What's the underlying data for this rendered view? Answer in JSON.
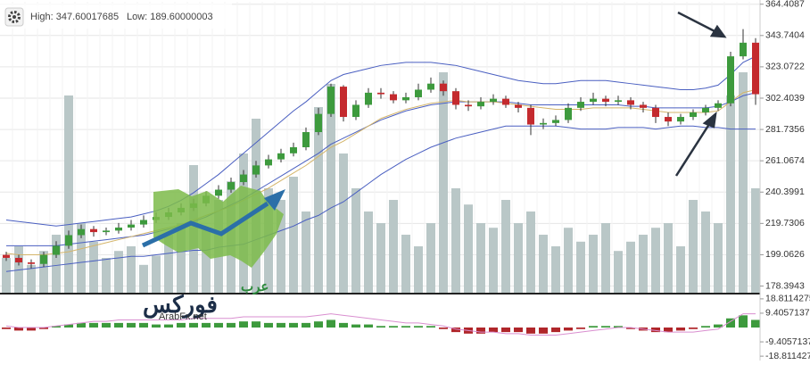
{
  "header": {
    "high": "High: 347.60017685",
    "low": "Low: 189.60000003"
  },
  "watermark": {
    "arabic_top": "عرب",
    "arabic_main": "فوركس",
    "site": "ArabFx.net"
  },
  "chart_data": [
    {
      "type": "candlestick",
      "ylim": [
        174,
        366
      ],
      "yticks": [
        364.4087,
        343.7404,
        323.0722,
        302.4039,
        281.7356,
        261.0674,
        240.3991,
        219.7306,
        199.0626,
        178.3943
      ],
      "grid": true,
      "up_color": "#3d9a3d",
      "down_color": "#c42a2e",
      "open": [
        199,
        197,
        194,
        193,
        199,
        205,
        212,
        216,
        214,
        215,
        217,
        219,
        222,
        224,
        227,
        230,
        233,
        238,
        242,
        247,
        252,
        258,
        262,
        266,
        270,
        280,
        292,
        310,
        290,
        298,
        306,
        305,
        301,
        303,
        308,
        312,
        307,
        298,
        297,
        300,
        302,
        298,
        296,
        285,
        286,
        288,
        296,
        300,
        302,
        300,
        301,
        298,
        296,
        290,
        287,
        290,
        293,
        296,
        299,
        330,
        339
      ],
      "high": [
        201,
        199,
        196,
        201,
        208,
        215,
        219,
        218,
        217,
        220,
        222,
        225,
        227,
        230,
        233,
        236,
        241,
        245,
        250,
        255,
        261,
        265,
        269,
        273,
        283,
        296,
        312,
        311,
        301,
        309,
        309,
        307,
        306,
        312,
        316,
        314,
        309,
        301,
        303,
        305,
        304,
        300,
        298,
        289,
        291,
        299,
        303,
        306,
        304,
        304,
        303,
        300,
        298,
        293,
        292,
        295,
        298,
        301,
        333,
        348,
        342
      ],
      "low": [
        195,
        192,
        190,
        191,
        197,
        203,
        210,
        211,
        212,
        213,
        215,
        217,
        220,
        222,
        225,
        228,
        231,
        236,
        240,
        245,
        250,
        256,
        260,
        264,
        268,
        278,
        290,
        287,
        288,
        296,
        302,
        299,
        299,
        301,
        306,
        304,
        295,
        294,
        295,
        298,
        296,
        293,
        278,
        282,
        284,
        286,
        294,
        298,
        297,
        298,
        295,
        293,
        286,
        284,
        285,
        288,
        291,
        294,
        297,
        328,
        298
      ],
      "close": [
        197,
        194,
        193,
        199,
        205,
        212,
        216,
        214,
        215,
        217,
        219,
        222,
        224,
        227,
        230,
        233,
        238,
        242,
        247,
        252,
        258,
        262,
        266,
        270,
        280,
        292,
        310,
        290,
        298,
        306,
        305,
        301,
        303,
        308,
        312,
        307,
        298,
        297,
        300,
        302,
        298,
        296,
        285,
        286,
        288,
        296,
        300,
        302,
        300,
        301,
        298,
        296,
        290,
        287,
        290,
        293,
        296,
        299,
        330,
        339,
        305
      ],
      "volume_color": "#b9c7c7",
      "volume_lim": [
        0,
        100
      ],
      "volume": [
        15,
        20,
        12,
        18,
        25,
        85,
        30,
        22,
        15,
        18,
        20,
        12,
        16,
        25,
        30,
        55,
        28,
        40,
        48,
        60,
        75,
        45,
        40,
        50,
        35,
        80,
        90,
        60,
        45,
        35,
        30,
        40,
        25,
        20,
        30,
        95,
        45,
        38,
        30,
        28,
        40,
        30,
        35,
        25,
        20,
        28,
        22,
        25,
        30,
        18,
        22,
        25,
        28,
        30,
        20,
        40,
        35,
        30,
        85,
        95,
        45
      ],
      "series": [
        {
          "name": "upper",
          "color": "#4a5fc1",
          "values": [
            222,
            221,
            220,
            219,
            218,
            219,
            220,
            221,
            222,
            223,
            224,
            226,
            228,
            231,
            235,
            240,
            246,
            252,
            259,
            266,
            273,
            280,
            287,
            294,
            300,
            307,
            314,
            318,
            320,
            322,
            324,
            325,
            326,
            326,
            326,
            325,
            324,
            322,
            320,
            318,
            316,
            314,
            313,
            312,
            312,
            313,
            314,
            314,
            314,
            313,
            312,
            311,
            310,
            309,
            308,
            308,
            309,
            311,
            318,
            326,
            330
          ]
        },
        {
          "name": "middle",
          "color": "#4a5fc1",
          "values": [
            205,
            205,
            205,
            205,
            205,
            206,
            207,
            208,
            209,
            210,
            211,
            212,
            214,
            216,
            218,
            221,
            224,
            228,
            232,
            236,
            241,
            246,
            251,
            256,
            261,
            266,
            272,
            276,
            280,
            284,
            288,
            291,
            294,
            296,
            298,
            299,
            300,
            300,
            300,
            300,
            300,
            299,
            298,
            298,
            298,
            298,
            298,
            298,
            298,
            298,
            297,
            297,
            296,
            296,
            296,
            296,
            296,
            297,
            300,
            304,
            306
          ]
        },
        {
          "name": "lower",
          "color": "#4a5fc1",
          "values": [
            188,
            189,
            190,
            191,
            192,
            193,
            194,
            195,
            196,
            197,
            198,
            198,
            199,
            200,
            201,
            202,
            202,
            204,
            205,
            206,
            209,
            212,
            215,
            218,
            222,
            225,
            230,
            234,
            240,
            246,
            252,
            257,
            262,
            266,
            270,
            273,
            276,
            278,
            280,
            282,
            284,
            284,
            284,
            284,
            284,
            283,
            282,
            282,
            282,
            283,
            283,
            283,
            282,
            283,
            284,
            284,
            283,
            283,
            282,
            282,
            282
          ]
        },
        {
          "name": "ma",
          "color": "#d4b56a",
          "values": [
            200,
            199,
            199,
            199,
            200,
            201,
            203,
            205,
            207,
            209,
            211,
            213,
            215,
            217,
            219,
            222,
            225,
            228,
            231,
            235,
            239,
            243,
            248,
            253,
            258,
            264,
            270,
            274,
            279,
            284,
            289,
            292,
            295,
            297,
            299,
            300,
            301,
            300,
            300,
            300,
            299,
            298,
            297,
            296,
            295,
            295,
            295,
            296,
            296,
            296,
            296,
            295,
            294,
            293,
            293,
            293,
            293,
            294,
            300,
            306,
            308
          ]
        }
      ]
    },
    {
      "type": "macd",
      "ylim": [
        -20.5,
        20.5
      ],
      "yticks": [
        18.8114275,
        9.4057137,
        -9.4057137,
        -18.8114275
      ],
      "up_color": "#3d9a3d",
      "down_color": "#b0262a",
      "histogram": [
        -1,
        -2,
        -2,
        -1,
        1,
        2,
        3,
        3,
        3,
        3,
        3,
        3,
        2,
        2,
        3,
        3,
        3,
        3,
        3,
        4,
        4,
        3,
        3,
        3,
        3,
        4,
        5,
        3,
        2,
        2,
        1,
        1,
        1,
        1,
        1,
        -1,
        -3,
        -4,
        -4,
        -3,
        -3,
        -3,
        -4,
        -4,
        -3,
        -2,
        -1,
        1,
        1,
        1,
        -1,
        -2,
        -3,
        -3,
        -2,
        -1,
        1,
        2,
        6,
        8,
        5
      ],
      "series": [
        {
          "name": "signal",
          "color": "#d98fd0",
          "values": [
            1,
            0,
            0,
            0,
            1,
            2,
            3,
            4,
            4,
            5,
            5,
            5,
            5,
            5,
            5,
            6,
            6,
            6,
            6,
            7,
            7,
            7,
            7,
            7,
            7,
            8,
            9,
            8,
            7,
            6,
            5,
            4,
            3,
            3,
            2,
            1,
            -1,
            -2,
            -3,
            -3,
            -4,
            -4,
            -5,
            -5,
            -5,
            -4,
            -3,
            -2,
            -1,
            0,
            0,
            -1,
            -2,
            -3,
            -3,
            -3,
            -2,
            -1,
            4,
            9,
            9
          ]
        }
      ]
    }
  ]
}
